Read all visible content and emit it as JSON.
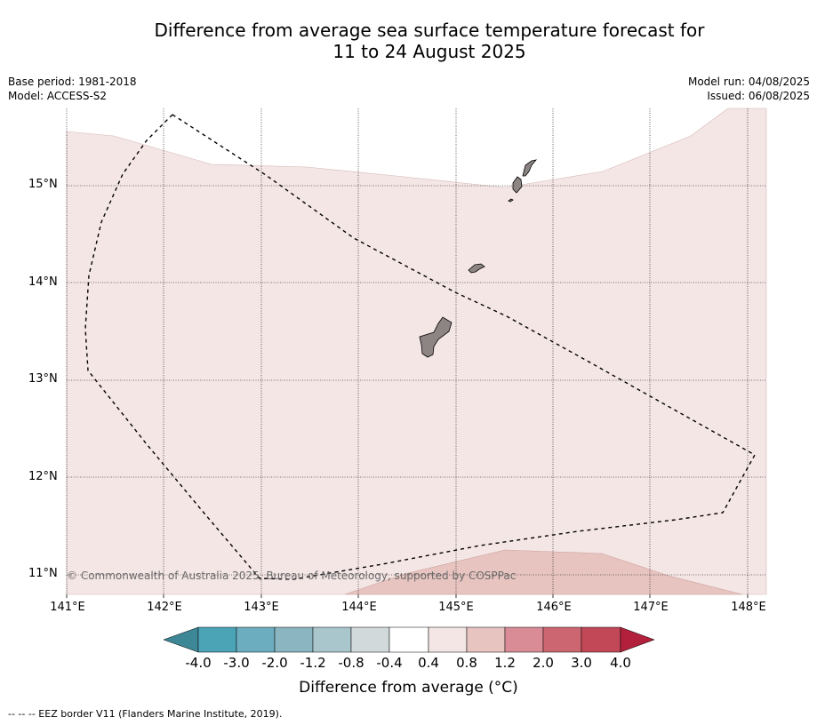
{
  "title_line1": "Difference from average sea surface temperature forecast for",
  "title_line2": "11 to 24 August 2025",
  "base_period": "Base period: 1981-2018",
  "model": "Model: ACCESS-S2",
  "model_run": "Model run: 04/08/2025",
  "issued": "Issued: 06/08/2025",
  "copyright": "© Commonwealth of Australia 2025, Bureau of Meteorology, supported by COSPPac",
  "lat_labels": [
    "15°N",
    "14°N",
    "13°N",
    "12°N",
    "11°N"
  ],
  "lon_labels": [
    "141°E",
    "142°E",
    "143°E",
    "144°E",
    "145°E",
    "146°E",
    "147°E",
    "148°E"
  ],
  "colorbar": {
    "tick_labels": [
      "-4.0",
      "-3.0",
      "-2.0",
      "-1.2",
      "-0.8",
      "-0.4",
      "0.4",
      "0.8",
      "1.2",
      "2.0",
      "3.0",
      "4.0"
    ],
    "colors": [
      "#3d8796",
      "#4aa4b6",
      "#6caebf",
      "#8bb5c1",
      "#a9c6cc",
      "#d1d9db",
      "#ffffff",
      "#f4e6e5",
      "#e7c4c0",
      "#d98c95",
      "#cc6671",
      "#c24858",
      "#b2203c"
    ],
    "title": "Difference from average (°C)"
  },
  "footnote": "-- -- -- EEZ border V11 (Flanders Marine Institute, 2019).",
  "legend_colors": {
    "anomaly_0_4_to_0_8": "#f4e6e5",
    "anomaly_0_8_to_1_2": "#e7c4c0",
    "land": "#8c8584",
    "eez_border": "#000000"
  }
}
